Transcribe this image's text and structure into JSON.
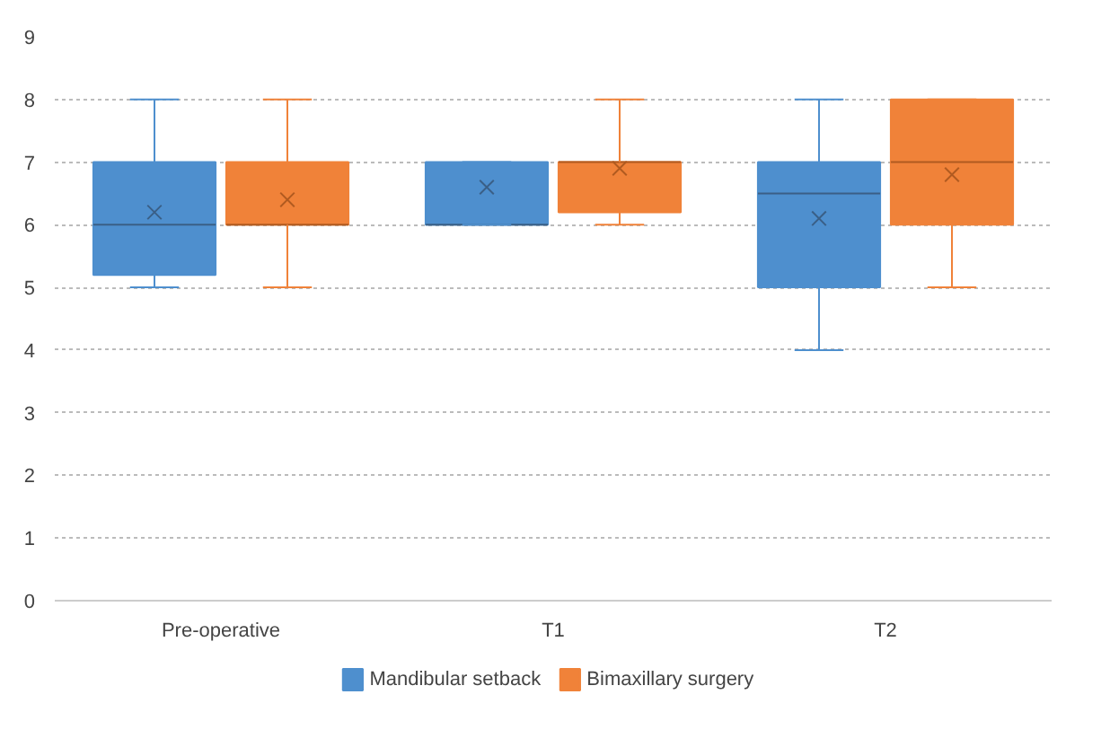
{
  "chart_data": {
    "type": "box",
    "categories": [
      "Pre-operative",
      "T1",
      "T2"
    ],
    "ylim": [
      0,
      9
    ],
    "yticks": [
      0,
      1,
      2,
      3,
      4,
      5,
      6,
      7,
      8,
      9
    ],
    "grid": "y",
    "legend": "bottom",
    "series": [
      {
        "name": "Mandibular setback",
        "color": "#4e8fce",
        "boxes": [
          {
            "low": 5,
            "q1": 5.2,
            "median": 6,
            "q3": 7,
            "high": 8,
            "mean": 6.2
          },
          {
            "low": 6,
            "q1": 6,
            "median": 6,
            "q3": 7,
            "high": 7,
            "mean": 6.6
          },
          {
            "low": 4,
            "q1": 5,
            "median": 6.5,
            "q3": 7,
            "high": 8,
            "mean": 6.1
          }
        ]
      },
      {
        "name": "Bimaxillary surgery",
        "color": "#f08239",
        "boxes": [
          {
            "low": 5,
            "q1": 6,
            "median": 6,
            "q3": 7,
            "high": 8,
            "mean": 6.4
          },
          {
            "low": 6,
            "q1": 6.2,
            "median": 7,
            "q3": 7,
            "high": 8,
            "mean": 6.9
          },
          {
            "low": 5,
            "q1": 6,
            "median": 7,
            "q3": 8,
            "high": 8,
            "mean": 6.8
          }
        ]
      }
    ]
  }
}
